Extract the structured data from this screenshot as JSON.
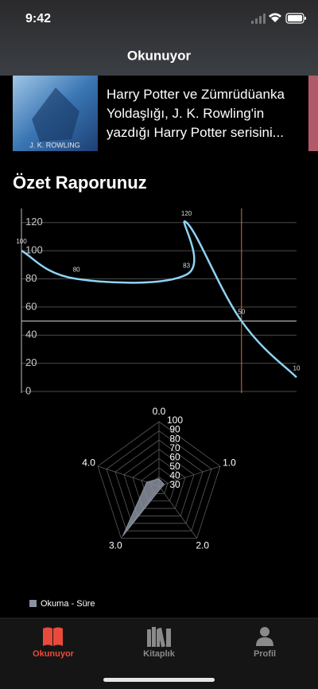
{
  "status_bar": {
    "time": "9:42"
  },
  "nav": {
    "title": "Okunuyor"
  },
  "book": {
    "cover_text": "J. K. ROWLING",
    "description": "Harry Potter ve Zümrüdüanka Yoldaşlığı, J. K. Rowling'in yazdığı Harry Potter serisini..."
  },
  "section_title": "Özet Raporunuz",
  "chart_data": [
    {
      "type": "line",
      "x": [
        0,
        1,
        3,
        3,
        4,
        5
      ],
      "values": [
        100,
        80,
        83,
        120,
        50,
        10
      ],
      "color": "#8fd3f4",
      "xlim": [
        0,
        5
      ],
      "ylim": [
        0,
        130
      ],
      "yticks": [
        0,
        20,
        40,
        60,
        80,
        100,
        120
      ],
      "grid": true,
      "highlight_index": 4,
      "highlight_color": "#c77a3f"
    },
    {
      "type": "radar",
      "categories": [
        "0.0",
        "1.0",
        "2.0",
        "3.0",
        "4.0"
      ],
      "series": [
        {
          "name": "Okuma - Süre",
          "color": "#8a909e",
          "values": [
            38,
            36,
            33,
            97,
            44
          ]
        }
      ],
      "rlim": [
        30,
        100
      ],
      "rticks": [
        30,
        40,
        50,
        60,
        70,
        80,
        90,
        100
      ],
      "legend": "bottom-left"
    }
  ],
  "tabs": [
    {
      "label": "Okunuyor",
      "active": true
    },
    {
      "label": "Kitaplık",
      "active": false
    },
    {
      "label": "Profil",
      "active": false
    }
  ]
}
